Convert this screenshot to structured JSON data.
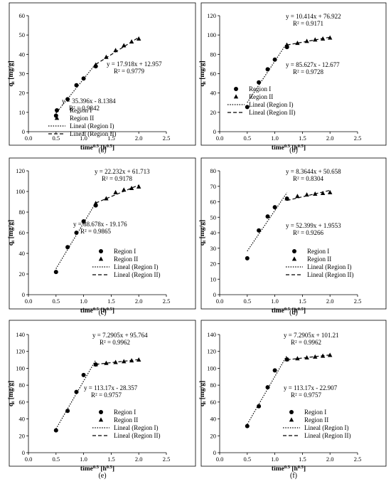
{
  "chart_data": [
    {
      "panel_label": "(a)",
      "type": "scatter",
      "xlabel": "time",
      "xlabel_sup": "0.5",
      "xlabel_unit": " [h",
      "xlabel_unit_sup": "0.5",
      "xlabel_close": "]",
      "ylabel": "q",
      "ylabel_sub": "t",
      "ylabel_unit": " [mg/g]",
      "xlim": [
        0,
        2.5
      ],
      "ylim": [
        0,
        60
      ],
      "xticks": [
        "0.0",
        "0.5",
        "1.0",
        "1.5",
        "2.0",
        "2.5"
      ],
      "yticks": [
        "0",
        "10",
        "20",
        "30",
        "40",
        "50",
        "60"
      ],
      "series": [
        {
          "name": "Region I",
          "marker": "circle",
          "x": [
            0.5,
            0.71,
            0.87,
            1.0,
            1.22
          ],
          "y": [
            8.3,
            16.8,
            24.0,
            27.5,
            33.8
          ]
        },
        {
          "name": "Region II",
          "marker": "triangle",
          "x": [
            1.22,
            1.41,
            1.58,
            1.73,
            1.87,
            2.0
          ],
          "y": [
            34.5,
            38.5,
            42.0,
            44.5,
            46.5,
            48.0
          ]
        }
      ],
      "fits": [
        {
          "name": "Lineal (Region I)",
          "style": "dotted",
          "slope": 35.396,
          "intercept": -8.1384,
          "x_range": [
            0.5,
            1.22
          ]
        },
        {
          "name": "Lineal (Region II)",
          "style": "dashed",
          "slope": 17.918,
          "intercept": 12.957,
          "x_range": [
            1.22,
            2.0
          ]
        }
      ],
      "annotations": [
        {
          "eq": "y = 17.918x + 12.957",
          "r2": "R² = 0.9779"
        },
        {
          "eq": "y = 35.396x - 8.1384",
          "r2": "R² = 0.9842"
        }
      ],
      "legend": "bottom-right"
    },
    {
      "panel_label": "(b)",
      "type": "scatter",
      "xlabel": "time",
      "xlabel_sup": "0.5",
      "xlabel_unit": " [h",
      "xlabel_unit_sup": "0.5",
      "xlabel_close": "]",
      "ylabel": "q",
      "ylabel_sub": "t",
      "ylabel_unit": " [mg/g]",
      "xlim": [
        0,
        2.5
      ],
      "ylim": [
        0,
        120
      ],
      "xticks": [
        "0.0",
        "0.5",
        "1.0",
        "1.5",
        "2.0",
        "2.5"
      ],
      "yticks": [
        "0",
        "20",
        "40",
        "60",
        "80",
        "100",
        "120"
      ],
      "series": [
        {
          "name": "Region I",
          "marker": "circle",
          "x": [
            0.5,
            0.71,
            0.87,
            1.0,
            1.22
          ],
          "y": [
            25.5,
            51.0,
            64.5,
            74.5,
            87.5
          ]
        },
        {
          "name": "Region II",
          "marker": "triangle",
          "x": [
            1.22,
            1.41,
            1.58,
            1.73,
            1.87,
            2.0
          ],
          "y": [
            89.5,
            91.5,
            93.5,
            95.0,
            96.0,
            97.0
          ]
        }
      ],
      "fits": [
        {
          "name": "Lineal (Region I)",
          "style": "dotted",
          "slope": 85.627,
          "intercept": -12.677,
          "x_range": [
            0.5,
            1.22
          ]
        },
        {
          "name": "Lineal (Region II)",
          "style": "dashed",
          "slope": 10.414,
          "intercept": 76.922,
          "x_range": [
            1.22,
            2.0
          ]
        }
      ],
      "annotations": [
        {
          "eq": "y = 10.414x + 76.922",
          "r2": "R² = 0.9171"
        },
        {
          "eq": "y = 85.627x - 12.677",
          "r2": "R² = 0.9728"
        }
      ],
      "legend": "bottom-right"
    },
    {
      "panel_label": "(c)",
      "type": "scatter",
      "xlabel": "time",
      "xlabel_sup": "0.5",
      "xlabel_unit": " [h",
      "xlabel_unit_sup": "0.5",
      "xlabel_close": "]",
      "ylabel": "q",
      "ylabel_sub": "t",
      "ylabel_unit": " [mg/g]",
      "xlim": [
        0,
        2.5
      ],
      "ylim": [
        0,
        120
      ],
      "xticks": [
        "0.0",
        "0.5",
        "1.0",
        "1.5",
        "2.0",
        "2.5"
      ],
      "yticks": [
        "0",
        "20",
        "40",
        "60",
        "80",
        "100",
        "120"
      ],
      "series": [
        {
          "name": "Region I",
          "marker": "circle",
          "x": [
            0.5,
            0.71,
            0.87,
            1.0,
            1.22
          ],
          "y": [
            22.0,
            46.0,
            60.0,
            71.0,
            86.5
          ]
        },
        {
          "name": "Region II",
          "marker": "triangle",
          "x": [
            1.22,
            1.41,
            1.58,
            1.73,
            1.87,
            2.0
          ],
          "y": [
            88.5,
            93.0,
            99.0,
            101.5,
            103.0,
            104.5
          ]
        }
      ],
      "fits": [
        {
          "name": "Lineal (Region I)",
          "style": "dotted",
          "slope": 88.678,
          "intercept": -19.176,
          "x_range": [
            0.5,
            1.22
          ]
        },
        {
          "name": "Lineal (Region II)",
          "style": "dashed",
          "slope": 22.232,
          "intercept": 61.713,
          "x_range": [
            1.22,
            2.0
          ]
        }
      ],
      "annotations": [
        {
          "eq": "y = 22.232x + 61.713",
          "r2": "R² = 0.9178"
        },
        {
          "eq": "y = 88.678x - 19.176",
          "r2": "R² = 0.9865"
        }
      ],
      "legend": "bottom-right"
    },
    {
      "panel_label": "(d)",
      "type": "scatter",
      "xlabel": "time",
      "xlabel_sup": "0.5",
      "xlabel_unit": " [h",
      "xlabel_unit_sup": "0.5",
      "xlabel_close": "]",
      "ylabel": "q",
      "ylabel_sub": "t",
      "ylabel_unit": " [mg/g]",
      "xlim": [
        0,
        2.5
      ],
      "ylim": [
        0,
        80
      ],
      "xticks": [
        "0.0",
        "0.5",
        "1.0",
        "1.5",
        "2.0",
        "2.5"
      ],
      "yticks": [
        "0",
        "10",
        "20",
        "30",
        "40",
        "50",
        "60",
        "70",
        "80"
      ],
      "series": [
        {
          "name": "Region I",
          "marker": "circle",
          "x": [
            0.5,
            0.71,
            0.87,
            1.0,
            1.22
          ],
          "y": [
            23.5,
            41.5,
            50.5,
            56.5,
            62.0
          ]
        },
        {
          "name": "Region II",
          "marker": "triangle",
          "x": [
            1.22,
            1.41,
            1.58,
            1.73,
            1.87,
            2.0
          ],
          "y": [
            62.0,
            63.5,
            64.5,
            65.0,
            65.5,
            66.0
          ]
        }
      ],
      "fits": [
        {
          "name": "Lineal (Region I)",
          "style": "dotted",
          "slope": 52.399,
          "intercept": 1.9553,
          "x_range": [
            0.5,
            1.22
          ]
        },
        {
          "name": "Lineal (Region II)",
          "style": "dashed",
          "slope": 8.3644,
          "intercept": 50.658,
          "x_range": [
            1.22,
            2.0
          ]
        }
      ],
      "annotations": [
        {
          "eq": "y = 8.3644x + 50.658",
          "r2": "R² = 0.8304"
        },
        {
          "eq": "y = 52.399x + 1.9553",
          "r2": "R² = 0.9266"
        }
      ],
      "legend": "bottom-right"
    },
    {
      "panel_label": "(e)",
      "type": "scatter",
      "xlabel": "time",
      "xlabel_sup": "0.5",
      "xlabel_unit": " [h",
      "xlabel_unit_sup": "0.5",
      "xlabel_close": "]",
      "ylabel": "q",
      "ylabel_sub": "t",
      "ylabel_unit": " [mg/g]",
      "xlim": [
        0,
        2.5
      ],
      "ylim": [
        0,
        140
      ],
      "xticks": [
        "0.0",
        "0.5",
        "1.0",
        "1.5",
        "2.0",
        "2.5"
      ],
      "yticks": [
        "0",
        "20",
        "40",
        "60",
        "80",
        "100",
        "120",
        "140"
      ],
      "series": [
        {
          "name": "Region I",
          "marker": "circle",
          "x": [
            0.5,
            0.71,
            0.87,
            1.0,
            1.22
          ],
          "y": [
            26.5,
            49.5,
            72.0,
            92.0,
            104.5
          ]
        },
        {
          "name": "Region II",
          "marker": "triangle",
          "x": [
            1.22,
            1.41,
            1.58,
            1.73,
            1.87,
            2.0
          ],
          "y": [
            104.5,
            106.0,
            107.0,
            108.0,
            109.0,
            110.0
          ]
        }
      ],
      "fits": [
        {
          "name": "Lineal (Region I)",
          "style": "dotted",
          "slope": 113.17,
          "intercept": -28.357,
          "x_range": [
            0.5,
            1.22
          ]
        },
        {
          "name": "Lineal (Region II)",
          "style": "dashed",
          "slope": 7.2905,
          "intercept": 95.764,
          "x_range": [
            1.22,
            2.0
          ]
        }
      ],
      "annotations": [
        {
          "eq": "y = 7.2905x + 95.764",
          "r2": "R² = 0.9962"
        },
        {
          "eq": "y = 113.17x - 28.357",
          "r2": "R² = 0.9757"
        }
      ],
      "legend": "bottom-right"
    },
    {
      "panel_label": "(f)",
      "type": "scatter",
      "xlabel": "time",
      "xlabel_sup": "0.5",
      "xlabel_unit": " [h",
      "xlabel_unit_sup": "0.5",
      "xlabel_close": "]",
      "ylabel": "q",
      "ylabel_sub": "t",
      "ylabel_unit": " [mg/g]",
      "xlim": [
        0,
        2.5
      ],
      "ylim": [
        0,
        140
      ],
      "xticks": [
        "0.0",
        "0.5",
        "1.0",
        "1.5",
        "2.0",
        "2.5"
      ],
      "yticks": [
        "0",
        "20",
        "40",
        "60",
        "80",
        "100",
        "120",
        "140"
      ],
      "series": [
        {
          "name": "Region I",
          "marker": "circle",
          "x": [
            0.5,
            0.71,
            0.87,
            1.0,
            1.22
          ],
          "y": [
            31.5,
            55.0,
            77.5,
            97.5,
            110.5
          ]
        },
        {
          "name": "Region II",
          "marker": "triangle",
          "x": [
            1.22,
            1.41,
            1.58,
            1.73,
            1.87,
            2.0
          ],
          "y": [
            110.5,
            111.5,
            112.5,
            113.5,
            114.5,
            115.5
          ]
        }
      ],
      "fits": [
        {
          "name": "Lineal (Region I)",
          "style": "dotted",
          "slope": 113.17,
          "intercept": -22.907,
          "x_range": [
            0.5,
            1.22
          ]
        },
        {
          "name": "Lineal (Region II)",
          "style": "dashed",
          "slope": 7.2905,
          "intercept": 101.21,
          "x_range": [
            1.22,
            2.0
          ]
        }
      ],
      "annotations": [
        {
          "eq": "y = 7.2905x + 101.21",
          "r2": "R² = 0.9962"
        },
        {
          "eq": "y = 113.17x - 22.907",
          "r2": "R² = 0.9757"
        }
      ],
      "legend": "bottom-right"
    }
  ]
}
